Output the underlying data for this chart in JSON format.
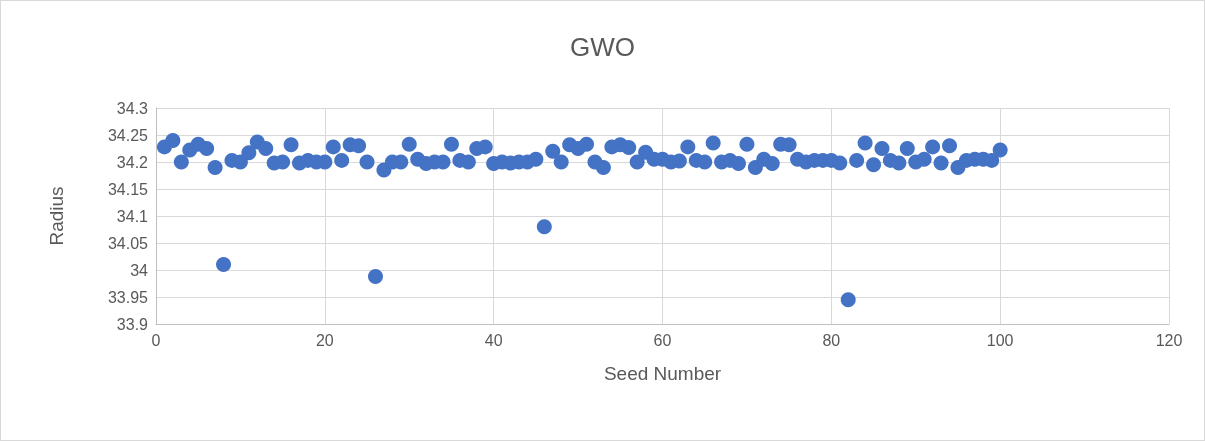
{
  "chart_data": {
    "type": "scatter",
    "title": "GWO",
    "xlabel": "Seed Number",
    "ylabel": "Radius",
    "x": [
      1,
      2,
      3,
      4,
      5,
      6,
      7,
      8,
      9,
      10,
      11,
      12,
      13,
      14,
      15,
      16,
      17,
      18,
      19,
      20,
      21,
      22,
      23,
      24,
      25,
      26,
      27,
      28,
      29,
      30,
      31,
      32,
      33,
      34,
      35,
      36,
      37,
      38,
      39,
      40,
      41,
      42,
      43,
      44,
      45,
      46,
      47,
      48,
      49,
      50,
      51,
      52,
      53,
      54,
      55,
      56,
      57,
      58,
      59,
      60,
      61,
      62,
      63,
      64,
      65,
      66,
      67,
      68,
      69,
      70,
      71,
      72,
      73,
      74,
      75,
      76,
      77,
      78,
      79,
      80,
      81,
      82,
      83,
      84,
      85,
      86,
      87,
      88,
      89,
      90,
      91,
      92,
      93,
      94,
      95,
      96,
      97,
      98,
      99,
      100
    ],
    "series": [
      {
        "color": "#4472c4",
        "values": [
          34.228,
          34.24,
          34.2,
          34.222,
          34.233,
          34.225,
          34.19,
          34.01,
          34.203,
          34.2,
          34.217,
          34.237,
          34.225,
          34.198,
          34.2,
          34.232,
          34.198,
          34.203,
          34.2,
          34.2,
          34.228,
          34.203,
          34.232,
          34.23,
          34.2,
          33.988,
          34.185,
          34.2,
          34.2,
          34.233,
          34.205,
          34.197,
          34.2,
          34.2,
          34.233,
          34.203,
          34.2,
          34.225,
          34.228,
          34.197,
          34.2,
          34.198,
          34.2,
          34.2,
          34.205,
          34.08,
          34.22,
          34.2,
          34.232,
          34.225,
          34.233,
          34.2,
          34.19,
          34.228,
          34.232,
          34.227,
          34.2,
          34.218,
          34.205,
          34.205,
          34.2,
          34.202,
          34.228,
          34.203,
          34.2,
          34.235,
          34.2,
          34.203,
          34.197,
          34.233,
          34.19,
          34.205,
          34.197,
          34.233,
          34.232,
          34.205,
          34.2,
          34.203,
          34.203,
          34.203,
          34.198,
          33.945,
          34.203,
          34.235,
          34.195,
          34.225,
          34.203,
          34.198,
          34.225,
          34.2,
          34.205,
          34.228,
          34.198,
          34.23,
          34.19,
          34.203,
          34.205,
          34.205,
          34.203,
          34.222
        ]
      }
    ],
    "xlim": [
      0,
      120
    ],
    "xticks": [
      0,
      20,
      40,
      60,
      80,
      100,
      120
    ],
    "ylim": [
      33.9,
      34.3
    ],
    "yticks": [
      33.9,
      33.95,
      34,
      34.05,
      34.1,
      34.15,
      34.2,
      34.25,
      34.3
    ],
    "grid": true,
    "marker": "circle"
  }
}
